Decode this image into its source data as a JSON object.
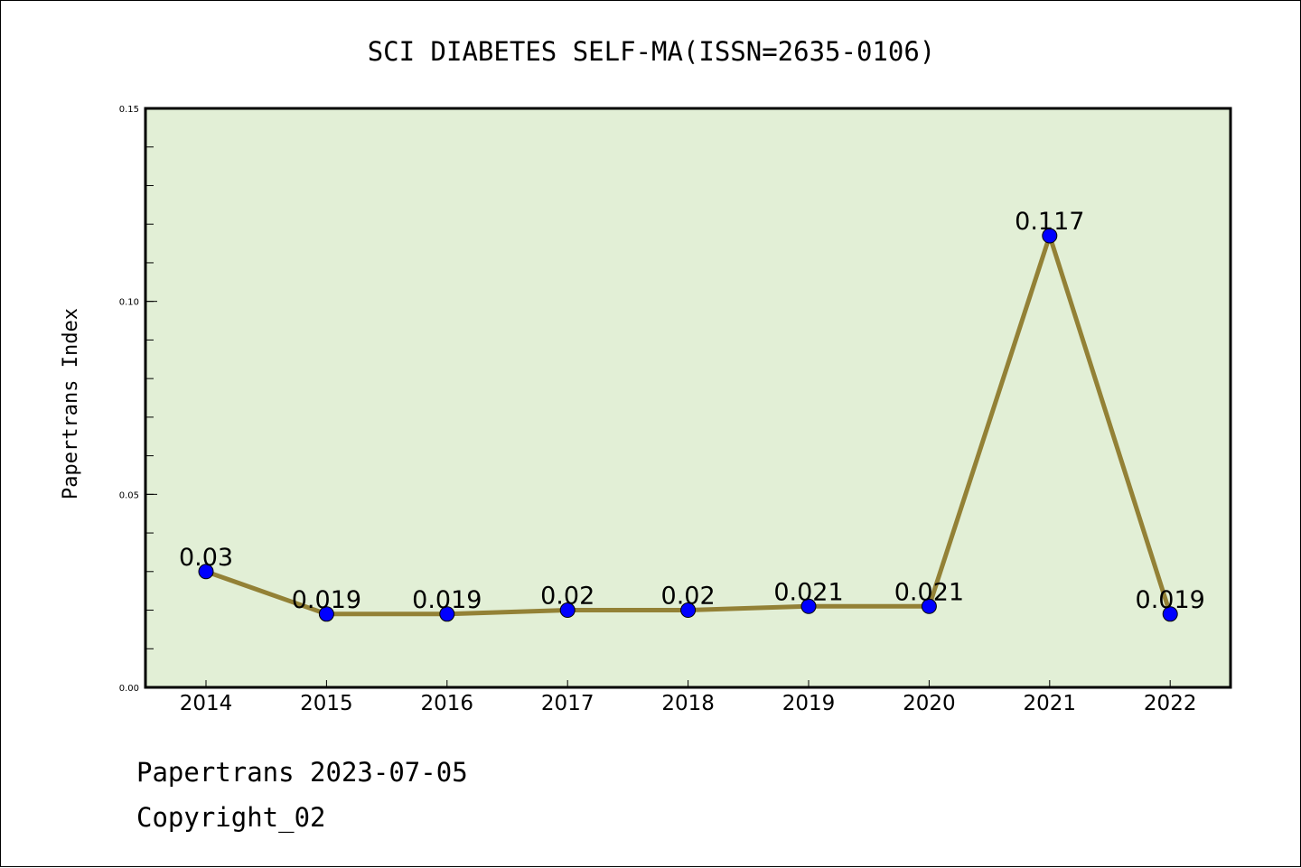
{
  "chart_data": {
    "type": "line",
    "title": "SCI DIABETES SELF-MA(ISSN=2635-0106)",
    "xlabel": "",
    "ylabel": "Papertrans Index",
    "categories": [
      "2014",
      "2015",
      "2016",
      "2017",
      "2018",
      "2019",
      "2020",
      "2021",
      "2022"
    ],
    "series": [
      {
        "name": "Papertrans Index",
        "values": [
          0.03,
          0.019,
          0.019,
          0.02,
          0.02,
          0.021,
          0.021,
          0.117,
          0.019
        ],
        "data_labels": [
          "0.03",
          "0.019",
          "0.019",
          "0.02",
          "0.02",
          "0.021",
          "0.021",
          "0.117",
          "0.019"
        ],
        "line_color": "#938136",
        "marker_color": "#0000ff"
      }
    ],
    "ylim": [
      0.0,
      0.15
    ],
    "y_major_ticks": [
      "0.00",
      "0.05",
      "0.10",
      "0.15"
    ],
    "y_major_tick_values": [
      0.0,
      0.05,
      0.1,
      0.15
    ],
    "y_minor_tick_step": 0.01,
    "grid": false,
    "legend": "none",
    "plot_background": "#e2efd6"
  },
  "footer": {
    "line1": "Papertrans 2023-07-05",
    "line2": "Copyright_02"
  }
}
